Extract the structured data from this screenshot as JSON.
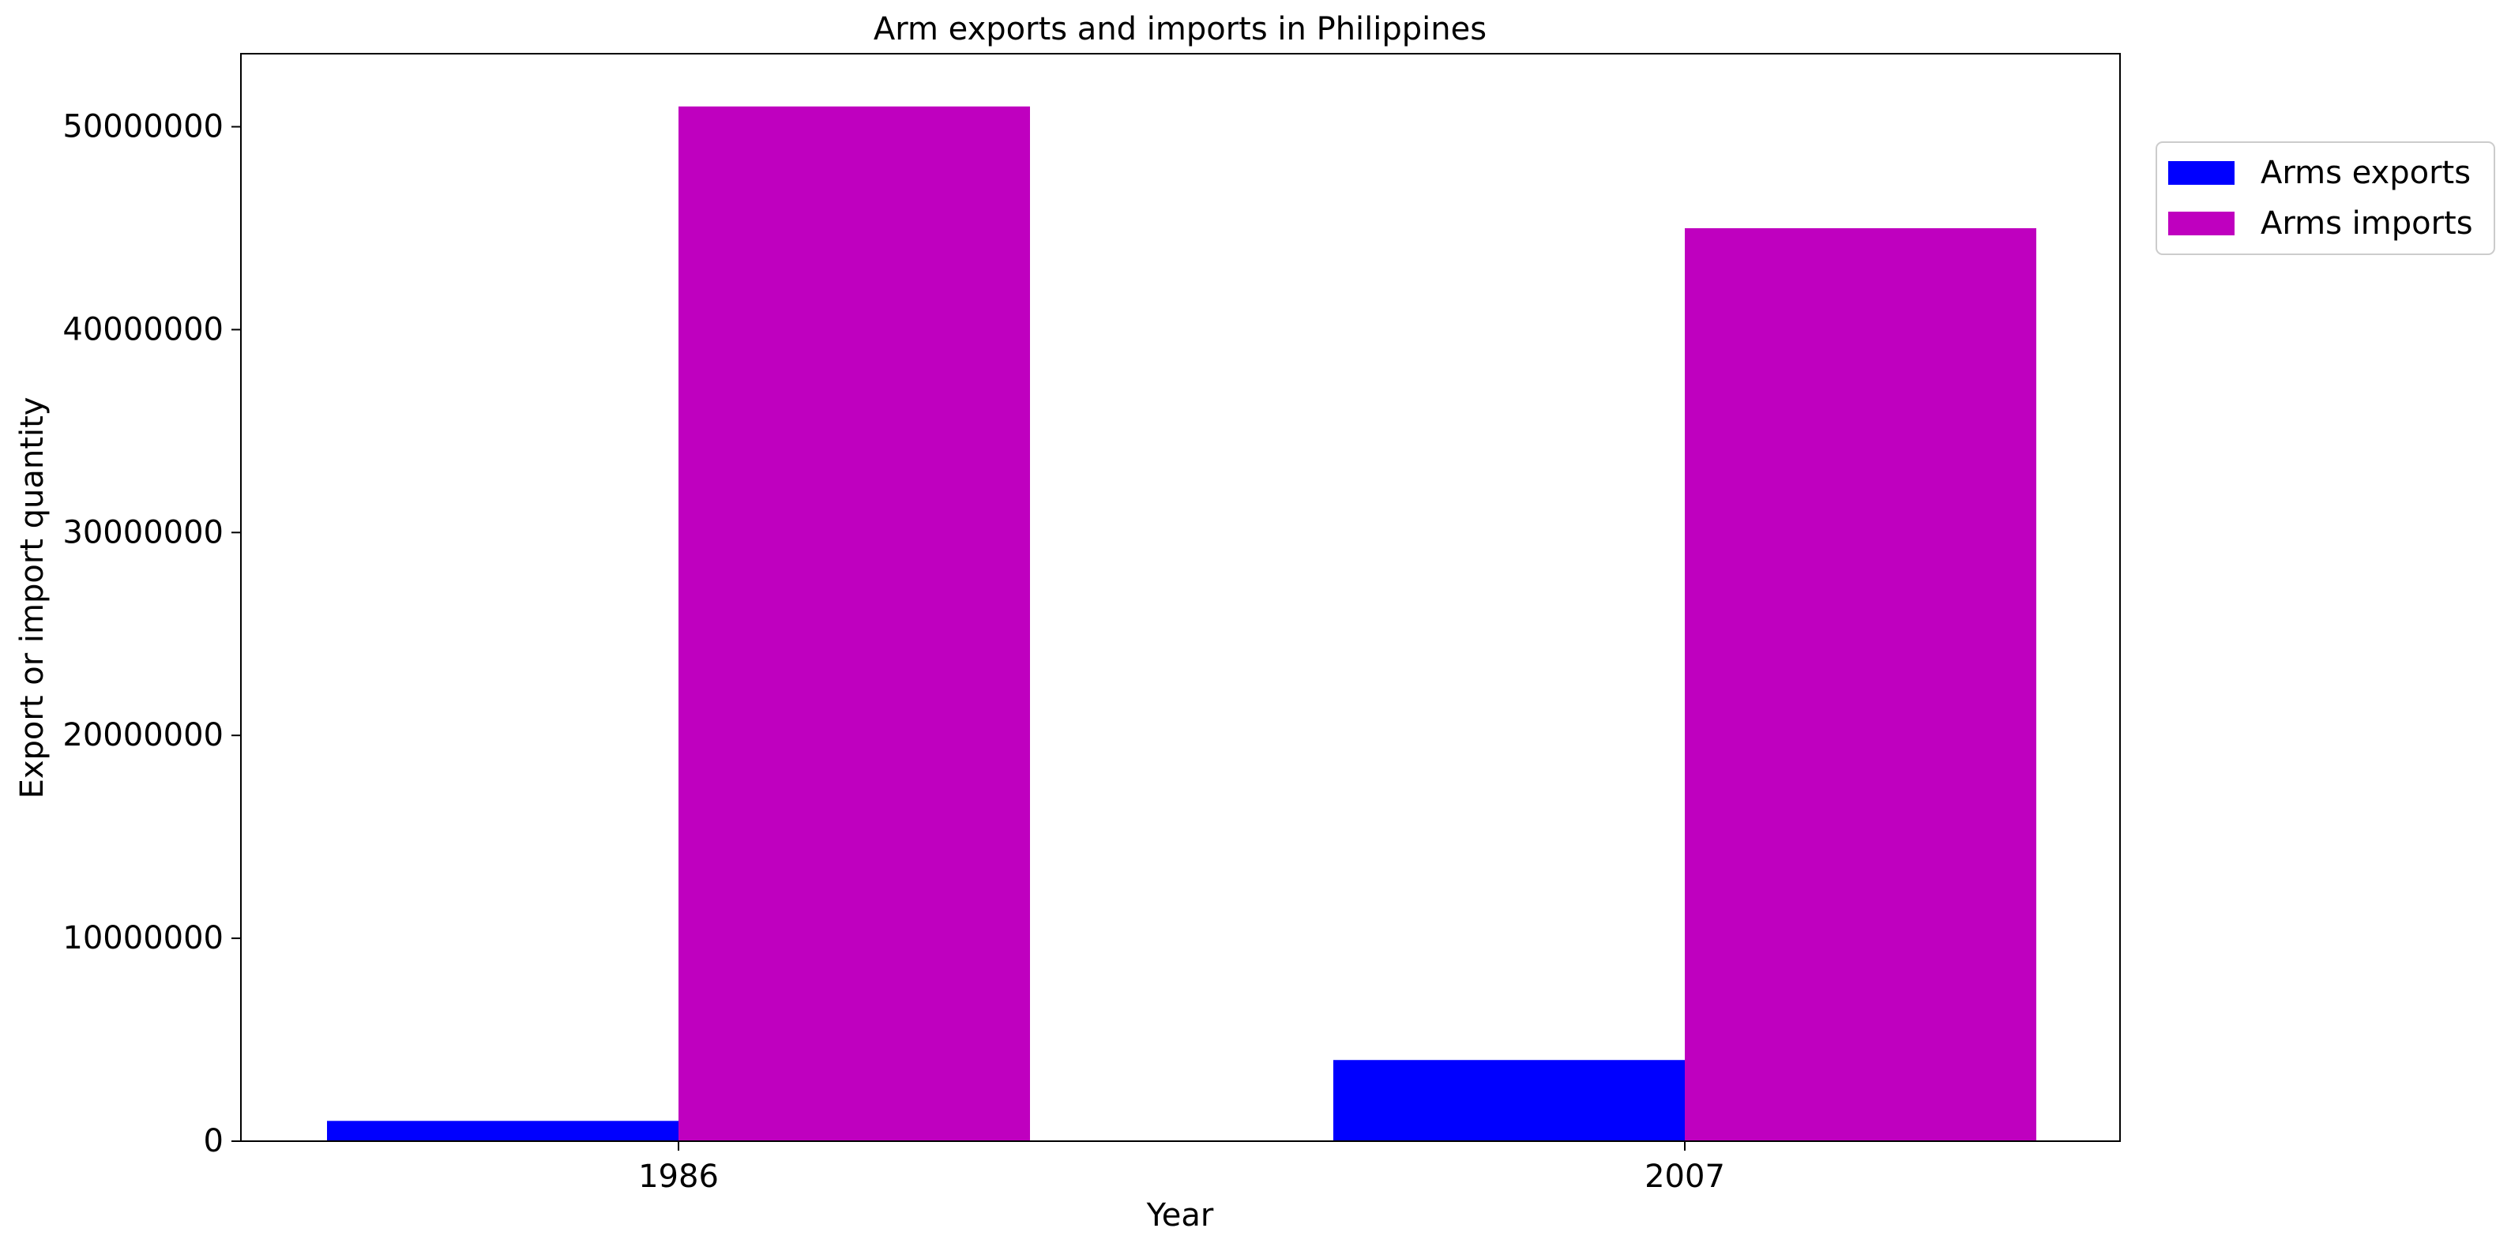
{
  "chart_data": {
    "type": "bar",
    "title": "Arm exports and imports in Philippines",
    "xlabel": "Year",
    "ylabel": "Export or import quantity",
    "categories": [
      "1986",
      "2007"
    ],
    "series": [
      {
        "name": "Arms exports",
        "values": [
          1000000,
          4000000
        ],
        "color": "#0000ff"
      },
      {
        "name": "Arms imports",
        "values": [
          51000000,
          45000000
        ],
        "color": "#bf00bf"
      }
    ],
    "ylim": [
      0,
      53600000
    ],
    "yticks": [
      0,
      10000000,
      20000000,
      30000000,
      40000000,
      50000000
    ],
    "ytick_labels": [
      "0",
      "10000000",
      "20000000",
      "30000000",
      "40000000",
      "50000000"
    ],
    "grid": false,
    "legend_position": "upper-right-outside"
  }
}
